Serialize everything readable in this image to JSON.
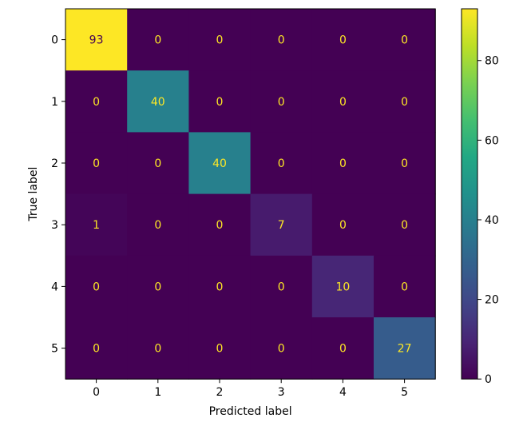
{
  "chart_data": {
    "type": "heatmap",
    "title": "",
    "xlabel": "Predicted label",
    "ylabel": "True label",
    "x_categories": [
      "0",
      "1",
      "2",
      "3",
      "4",
      "5"
    ],
    "y_categories": [
      "0",
      "1",
      "2",
      "3",
      "4",
      "5"
    ],
    "matrix": [
      [
        93,
        0,
        0,
        0,
        0,
        0
      ],
      [
        0,
        40,
        0,
        0,
        0,
        0
      ],
      [
        0,
        0,
        40,
        0,
        0,
        0
      ],
      [
        1,
        0,
        0,
        7,
        0,
        0
      ],
      [
        0,
        0,
        0,
        0,
        10,
        0
      ],
      [
        0,
        0,
        0,
        0,
        0,
        27
      ]
    ],
    "colormap": "viridis",
    "vmin": 0,
    "vmax": 93,
    "colorbar_ticks": [
      0,
      20,
      40,
      60,
      80
    ],
    "text_color_dark_cells": "#fde725",
    "text_color_bright_cells": "#440154"
  }
}
